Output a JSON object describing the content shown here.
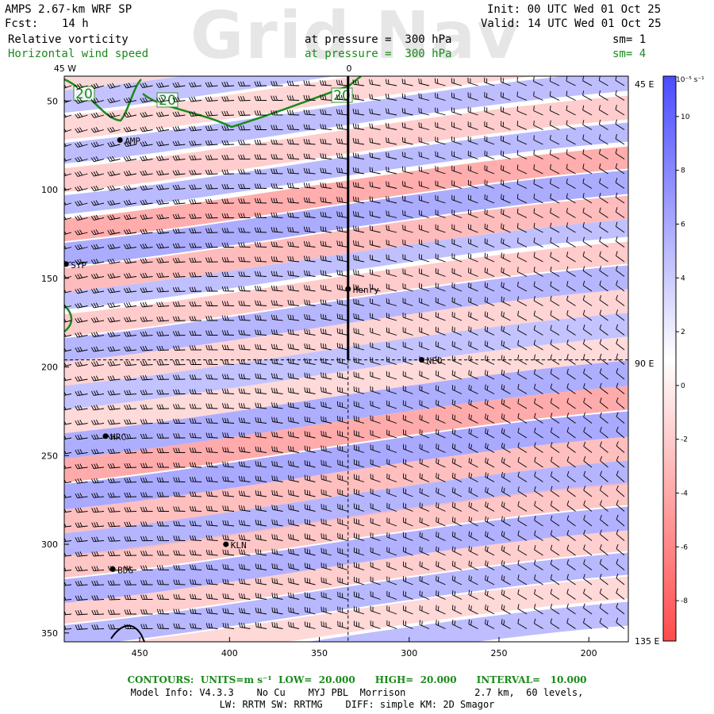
{
  "watermark": "Grid Nav",
  "header": {
    "model_line": "AMPS 2.67-km WRF SP",
    "forecast_label": "Fcst:",
    "forecast_value": "14 h",
    "init_line": "Init: 00 UTC Wed 01 Oct 25",
    "valid_line": "Valid: 14 UTC Wed 01 Oct 25",
    "field1_name": "Relative vorticity",
    "field1_level": "at pressure =  300 hPa",
    "field1_sm": "sm= 1",
    "field2_name": "Horizontal wind speed",
    "field2_level": "at pressure =  300 hPa",
    "field2_sm": "sm= 4"
  },
  "colors": {
    "positive": "#5b5bff",
    "negative": "#ff5b5b",
    "contour": "#1a8a1a",
    "barb": "#000000"
  },
  "chart_data": {
    "type": "heatmap",
    "fields": [
      "Relative vorticity (shaded)",
      "Horizontal wind speed (contours)",
      "Wind barbs"
    ],
    "x_ticks": [
      450,
      400,
      350,
      300,
      250,
      200
    ],
    "y_ticks": [
      50,
      100,
      150,
      200,
      250,
      300,
      350
    ],
    "xlim": [
      492,
      178
    ],
    "ylim": [
      36,
      355
    ],
    "top_lon_labels": [
      "45 W",
      "0"
    ],
    "right_lon_labels": [
      "45 E",
      "90 E",
      "135 E"
    ],
    "colorbar": {
      "unit_label": "10⁻⁵ s⁻¹",
      "ticks": [
        10,
        8,
        6,
        4,
        2,
        0,
        -2,
        -4,
        -6,
        -8
      ],
      "range": [
        -9.5,
        11.5
      ]
    },
    "stations": [
      {
        "name": "AMP",
        "x": 461,
        "y": 72
      },
      {
        "name": "SYP",
        "x": 491,
        "y": 142
      },
      {
        "name": "Henry",
        "x": 334,
        "y": 156
      },
      {
        "name": "NEO",
        "x": 293,
        "y": 196
      },
      {
        "name": "HRC",
        "x": 469,
        "y": 239
      },
      {
        "name": "KLN",
        "x": 402,
        "y": 300
      },
      {
        "name": "BDG",
        "x": 465,
        "y": 314
      }
    ],
    "cross_section": {
      "x": 334,
      "y_end": 196
    },
    "contours": {
      "units": "m s⁻¹",
      "low": 20.0,
      "high": 20.0,
      "interval": 10.0,
      "label": "20"
    }
  },
  "footer": {
    "contours_line": "CONTOURS:  UNITS=m s⁻¹  LOW=  20.000      HIGH=  20.000      INTERVAL=   10.000",
    "model_info_line": "Model Info: V4.3.3    No Cu    MYJ PBL  Morrison            2.7 km,  60 levels,",
    "physics_line": "LW: RRTM SW: RRTMG    DIFF: simple KM: 2D Smagor"
  }
}
